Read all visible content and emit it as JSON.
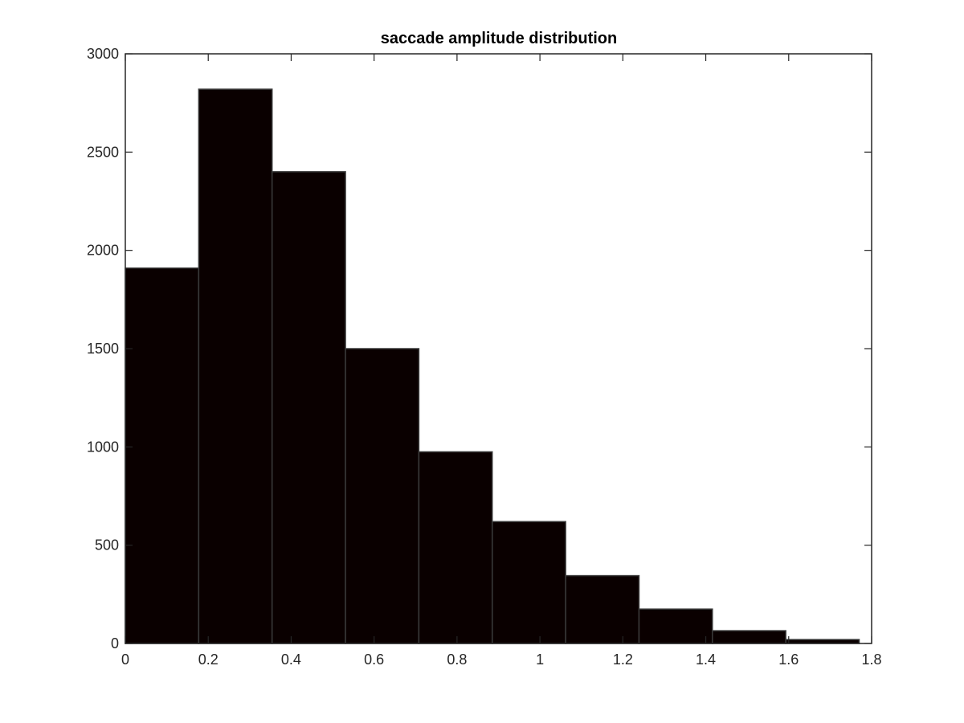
{
  "chart_data": {
    "type": "bar",
    "title": "saccade amplitude distribution",
    "xlabel": "",
    "ylabel": "",
    "xlim": [
      0,
      1.8
    ],
    "ylim": [
      0,
      3000
    ],
    "xticks": [
      "0",
      "0.2",
      "0.4",
      "0.6",
      "0.8",
      "1",
      "1.2",
      "1.4",
      "1.6",
      "1.8"
    ],
    "yticks": [
      "0",
      "500",
      "1000",
      "1500",
      "2000",
      "2500",
      "3000"
    ],
    "bins": [
      {
        "start": 0.0,
        "end": 0.177,
        "value": 1910
      },
      {
        "start": 0.177,
        "end": 0.354,
        "value": 2820
      },
      {
        "start": 0.354,
        "end": 0.531,
        "value": 2400
      },
      {
        "start": 0.531,
        "end": 0.708,
        "value": 1500
      },
      {
        "start": 0.708,
        "end": 0.885,
        "value": 975
      },
      {
        "start": 0.885,
        "end": 1.062,
        "value": 620
      },
      {
        "start": 1.062,
        "end": 1.239,
        "value": 345
      },
      {
        "start": 1.239,
        "end": 1.416,
        "value": 175
      },
      {
        "start": 1.416,
        "end": 1.593,
        "value": 65
      },
      {
        "start": 1.593,
        "end": 1.77,
        "value": 20
      }
    ],
    "bar_color": "#0a0000",
    "bar_edge_color": "#3a3a3a",
    "grid": false,
    "box": true
  }
}
